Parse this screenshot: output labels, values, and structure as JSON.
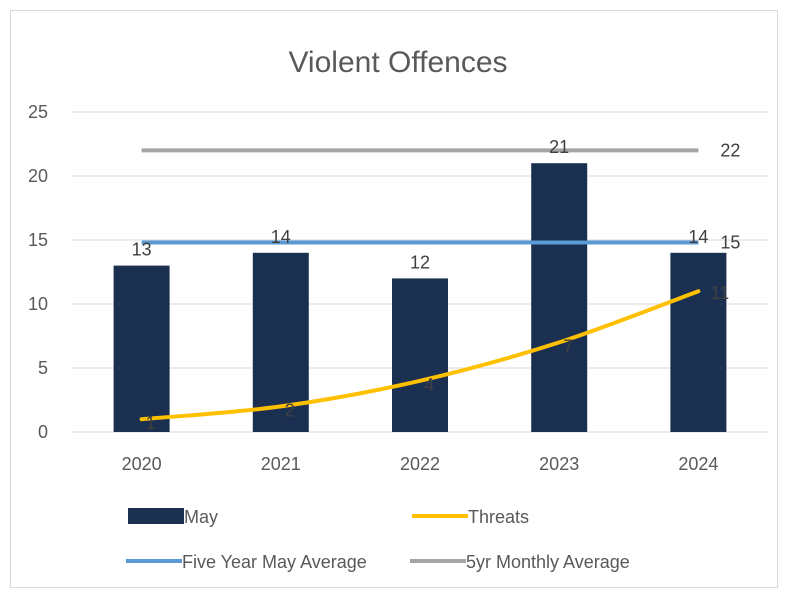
{
  "chart_data": {
    "type": "bar",
    "title": "Violent Offences",
    "categories": [
      "2020",
      "2021",
      "2022",
      "2023",
      "2024"
    ],
    "ylim": [
      0,
      25
    ],
    "yticks": [
      "0",
      "5",
      "10",
      "15",
      "20",
      "25"
    ],
    "grid": true,
    "legend_position": "bottom",
    "series": [
      {
        "name": "May",
        "kind": "bar",
        "color": "#1b3050",
        "values": [
          13,
          14,
          12,
          21,
          14
        ],
        "labels": [
          "13",
          "14",
          "12",
          "21",
          "14"
        ]
      },
      {
        "name": "Threats",
        "kind": "line",
        "color": "#ffc000",
        "values": [
          1,
          2,
          4,
          7,
          11
        ],
        "labels": [
          "1",
          "2",
          "4",
          "7",
          "11"
        ]
      },
      {
        "name": "Five Year May Average",
        "kind": "line",
        "color": "#5b9bd5",
        "values": [
          14.8,
          14.8,
          14.8,
          14.8,
          14.8
        ],
        "end_label": "15"
      },
      {
        "name": "5yr Monthly Average",
        "kind": "line",
        "color": "#a5a5a5",
        "values": [
          22,
          22,
          22,
          22,
          22
        ],
        "end_label": "22"
      }
    ]
  }
}
